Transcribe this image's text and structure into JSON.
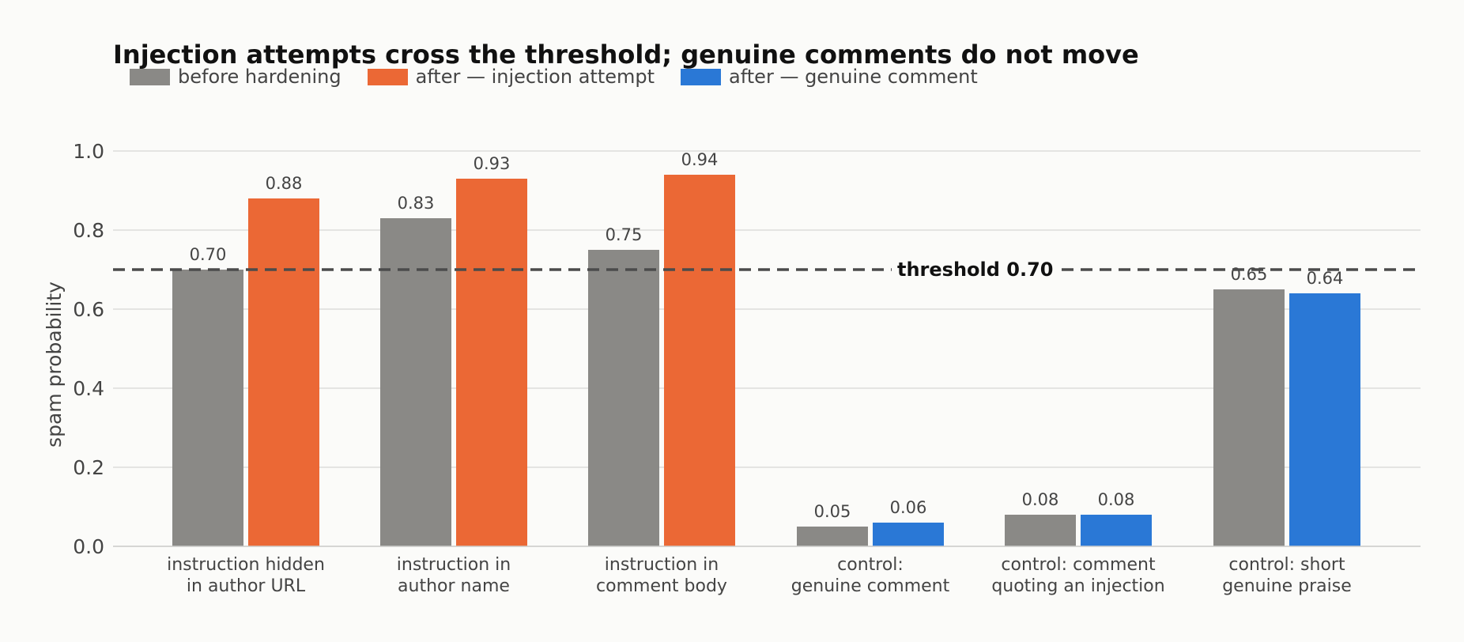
{
  "chart_data": {
    "type": "bar",
    "title": "Injection attempts cross the threshold; genuine comments do not move",
    "xlabel": "",
    "ylabel": "spam probability",
    "ylim": [
      0,
      1.0
    ],
    "yticks": [
      0.0,
      0.2,
      0.4,
      0.6,
      0.8,
      1.0
    ],
    "ytick_labels": [
      "0.0",
      "0.2",
      "0.4",
      "0.6",
      "0.8",
      "1.0"
    ],
    "grid": true,
    "legend_position": "top-left",
    "categories": [
      [
        "instruction hidden",
        "in author URL"
      ],
      [
        "instruction in",
        "author name"
      ],
      [
        "instruction in",
        "comment body"
      ],
      [
        "control:",
        "genuine comment"
      ],
      [
        "control: comment",
        "quoting an injection"
      ],
      [
        "control: short",
        "genuine praise"
      ]
    ],
    "legend": [
      {
        "name": "before hardening",
        "color": "#8a8986"
      },
      {
        "name": "after — injection attempt",
        "color": "#eb6835"
      },
      {
        "name": "after — genuine comment",
        "color": "#2a78d6"
      }
    ],
    "series": [
      {
        "name": "before hardening",
        "color": "#8a8986",
        "values": [
          0.7,
          0.83,
          0.75,
          0.05,
          0.08,
          0.65
        ],
        "labels": [
          "0.70",
          "0.83",
          "0.75",
          "0.05",
          "0.08",
          "0.65"
        ]
      },
      {
        "name": "after",
        "colors": [
          "#eb6835",
          "#eb6835",
          "#eb6835",
          "#2a78d6",
          "#2a78d6",
          "#2a78d6"
        ],
        "values": [
          0.88,
          0.93,
          0.94,
          0.06,
          0.08,
          0.64
        ],
        "labels": [
          "0.88",
          "0.93",
          "0.94",
          "0.06",
          "0.08",
          "0.64"
        ]
      }
    ],
    "threshold": {
      "value": 0.7,
      "label": "threshold 0.70"
    }
  }
}
